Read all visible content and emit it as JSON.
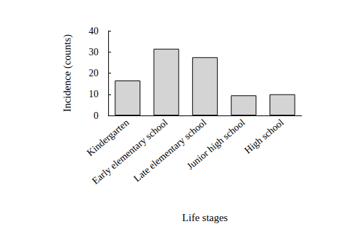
{
  "chart_data": {
    "type": "bar",
    "categories": [
      "Kindergarten",
      "Early elementary school",
      "Late elementary school",
      "Junior high school",
      "High school"
    ],
    "values": [
      16.5,
      31.5,
      27.5,
      9.5,
      10
    ],
    "color": "#d4d4d4",
    "x_label": "Life stages",
    "y_label": "Incidence (counts)",
    "ylim": [
      0,
      40
    ],
    "yticks": [
      0,
      10,
      20,
      30,
      40
    ],
    "grid": false
  }
}
